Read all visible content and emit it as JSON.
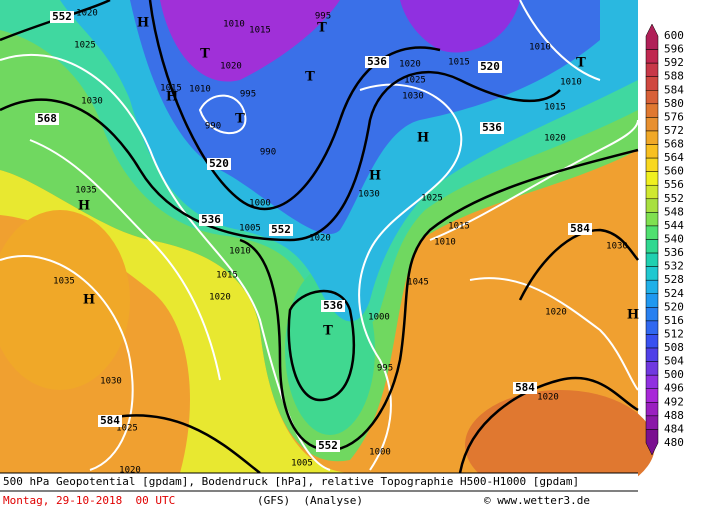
{
  "map": {
    "height_labels": [
      552,
      568,
      536,
      520,
      536,
      520,
      536,
      552,
      584,
      536,
      584,
      584,
      552
    ],
    "pressure_labels": [
      1020,
      1025,
      1030,
      1010,
      1015,
      995,
      1020,
      1015,
      1010,
      995,
      990,
      990,
      1000,
      1005,
      1010,
      1015,
      1020,
      1020,
      1010,
      1015,
      1020,
      1025,
      1030,
      1010,
      1015,
      1020,
      1030,
      1025,
      1015,
      1010,
      1030,
      1045,
      1020,
      1000,
      995,
      1020,
      1035,
      1035,
      1030,
      1025,
      1000,
      1005,
      1020
    ],
    "symbols": [
      "H",
      "T",
      "T",
      "T",
      "H",
      "T",
      "H",
      "H",
      "H",
      "H",
      "T",
      "T",
      "H"
    ]
  },
  "colorbar": {
    "labels": [
      600,
      596,
      592,
      588,
      584,
      580,
      576,
      572,
      568,
      564,
      560,
      556,
      552,
      548,
      544,
      540,
      536,
      532,
      528,
      524,
      520,
      516,
      512,
      508,
      504,
      500,
      496,
      492,
      488,
      484,
      480
    ],
    "colors": [
      "#b02058",
      "#c02850",
      "#c83848",
      "#d04840",
      "#d86038",
      "#e07830",
      "#e89030",
      "#f0a828",
      "#f8c020",
      "#f8d820",
      "#f0f020",
      "#d0e830",
      "#a8e040",
      "#80e050",
      "#50e070",
      "#30d890",
      "#20d0b0",
      "#20c8d0",
      "#20b0e8",
      "#2098f0",
      "#2880f0",
      "#3068f0",
      "#3850f0",
      "#5040e8",
      "#7038e0",
      "#9030e0",
      "#a828d8",
      "#9a20c0",
      "#8a18a8",
      "#7a1090"
    ]
  },
  "footer": {
    "description": "500 hPa Geopotential [gpdam], Bodendruck [hPa], relative Topographie H500-H1000 [gpdam]",
    "date": "Montag, 29-10-2018  00 UTC",
    "model": "(GFS)  (Analyse)",
    "credit": "© www.wetter3.de"
  }
}
